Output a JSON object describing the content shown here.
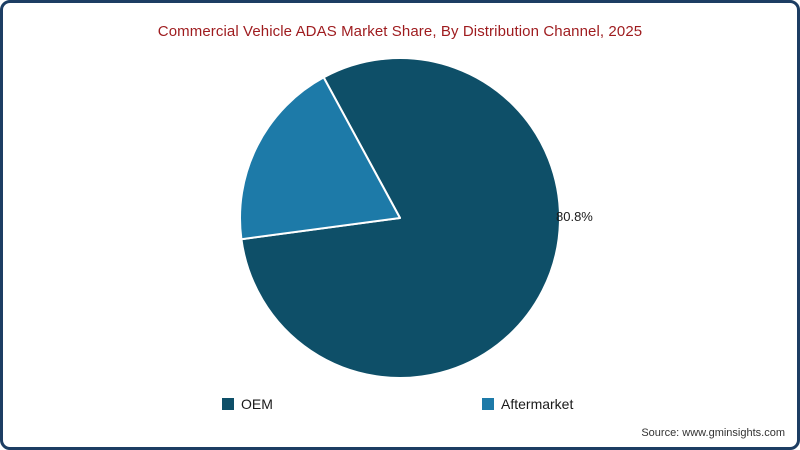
{
  "frame": {
    "border_color": "#1c3d63",
    "background": "#ffffff"
  },
  "title": "Commercial Vehicle ADAS Market Share, By Distribution Channel, 2025",
  "title_color": "#9e1b1e",
  "source": "Source: www.gminsights.com",
  "chart_data": {
    "type": "pie",
    "title": "Commercial Vehicle ADAS Market Share, By Distribution Channel, 2025",
    "slices": [
      {
        "label": "OEM",
        "value": 80.8,
        "color": "#0e4f68"
      },
      {
        "label": "Aftermarket",
        "value": 19.2,
        "color": "#1d7aa8"
      }
    ],
    "data_labels": [
      {
        "text": "80.8%",
        "slice": "OEM",
        "position": "right"
      }
    ],
    "legend_position": "bottom",
    "start_angle_deg": -118.5,
    "slice_border_color": "#ffffff"
  }
}
